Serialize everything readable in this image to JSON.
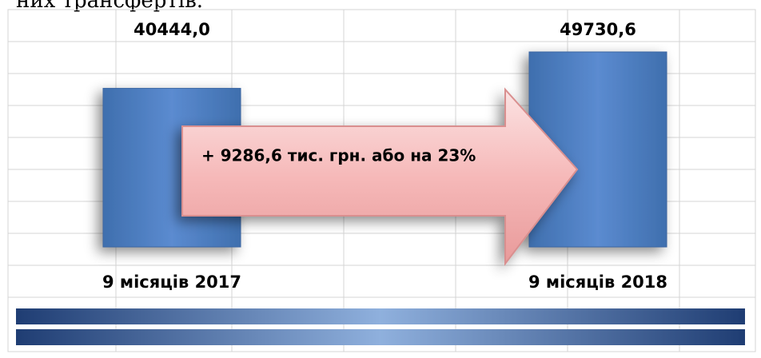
{
  "chart_data": {
    "type": "bar",
    "heading": "них трансфертів.",
    "categories": [
      "9 місяців 2017",
      "9 місяців 2018"
    ],
    "values": [
      40444.0,
      49730.6
    ],
    "value_labels": [
      "40444,0",
      "49730,6"
    ],
    "color": "#4f81bd",
    "annotation": "+ 9286,6 тис. грн. або на 23%"
  }
}
